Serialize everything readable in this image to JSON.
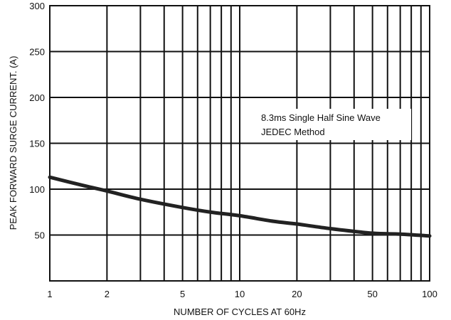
{
  "chart_data": {
    "type": "line",
    "xscale": "log",
    "xlim": [
      1,
      100
    ],
    "ylim": [
      0,
      300
    ],
    "xlabel": "NUMBER OF CYCLES AT 60Hz",
    "ylabel": "PEAK FORWARD SURGE CURRENT. (A)",
    "x_tick_labels": [
      "1",
      "2",
      "5",
      "10",
      "20",
      "50",
      "100"
    ],
    "x_ticks": [
      1,
      2,
      5,
      10,
      20,
      50,
      100
    ],
    "y_tick_labels": [
      "50",
      "100",
      "150",
      "200",
      "250",
      "300"
    ],
    "y_ticks": [
      50,
      100,
      150,
      200,
      250,
      300
    ],
    "grid": true,
    "annotation_lines": [
      "8.3ms Single Half Sine Wave",
      "JEDEC Method"
    ],
    "series": [
      {
        "x": [
          1,
          1.5,
          2,
          3,
          5,
          7,
          10,
          15,
          20,
          30,
          50,
          70,
          100
        ],
        "values": [
          113,
          104,
          98,
          89,
          80,
          75,
          71,
          65,
          62,
          57,
          52,
          51,
          49
        ]
      }
    ],
    "colors": {
      "axes": "#111111",
      "grid": "#111111",
      "curve": "#222222",
      "background": "#ffffff"
    }
  }
}
